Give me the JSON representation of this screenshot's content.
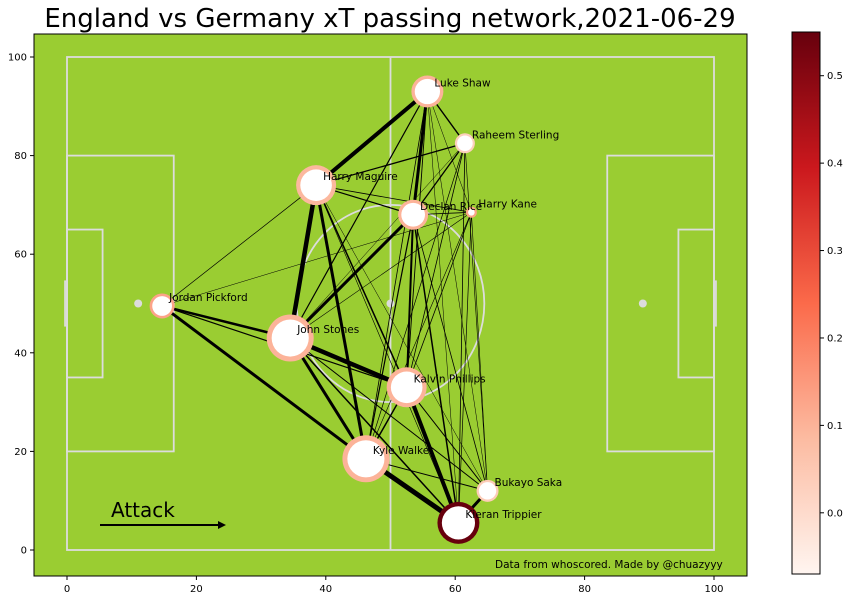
{
  "title": "England vs Germany xT passing network,2021-06-29",
  "attack_label": "Attack",
  "credit": "Data from whoscored. Made by @chuazyyy",
  "colors": {
    "pitch": "#9acd32",
    "pitch_lines": "#dcdcdc",
    "edge": "#000000",
    "node_fill": "#ffffff",
    "cmap": [
      "#fff5f0",
      "#fcbba1",
      "#fb6a4a",
      "#cb181d",
      "#67000d"
    ]
  },
  "chart_data": {
    "type": "network",
    "xlim": [
      -5,
      105
    ],
    "ylim": [
      -5,
      105
    ],
    "xticks": [
      0,
      20,
      40,
      60,
      80,
      100
    ],
    "yticks": [
      0,
      20,
      40,
      60,
      80,
      100
    ],
    "colorbar": {
      "min": -0.07,
      "max": 0.55,
      "ticks": [
        0.0,
        0.1,
        0.2,
        0.3,
        0.4,
        0.5
      ],
      "tick_labels": [
        "0.0",
        "0.1",
        "0.2",
        "0.3",
        "0.4",
        "0.5"
      ]
    },
    "nodes": [
      {
        "id": "shaw",
        "name": "Luke Shaw",
        "x": 55.7,
        "y": 93,
        "size": 3.2,
        "xt": 0.1
      },
      {
        "id": "sterling",
        "name": "Raheem Sterling",
        "x": 61.5,
        "y": 82.5,
        "size": 2.0,
        "xt": 0.03
      },
      {
        "id": "maguire",
        "name": "Harry Maguire",
        "x": 38.5,
        "y": 74,
        "size": 4.0,
        "xt": 0.09
      },
      {
        "id": "rice",
        "name": "Declan Rice",
        "x": 53.5,
        "y": 68,
        "size": 3.0,
        "xt": 0.1
      },
      {
        "id": "kane",
        "name": "Harry Kane",
        "x": 62.5,
        "y": 68.5,
        "size": 1.1,
        "xt": 0.13
      },
      {
        "id": "pickford",
        "name": "Jordan Pickford",
        "x": 14.7,
        "y": 49.5,
        "size": 2.5,
        "xt": 0.13
      },
      {
        "id": "stones",
        "name": "John Stones",
        "x": 34.5,
        "y": 43,
        "size": 4.7,
        "xt": 0.1
      },
      {
        "id": "phillips",
        "name": "Kalvin Phillips",
        "x": 52.5,
        "y": 33,
        "size": 4.0,
        "xt": 0.1
      },
      {
        "id": "walker",
        "name": "Kyle Walker",
        "x": 46.2,
        "y": 18.5,
        "size": 4.7,
        "xt": 0.1
      },
      {
        "id": "saka",
        "name": "Bukayo Saka",
        "x": 65,
        "y": 12,
        "size": 2.2,
        "xt": 0.04
      },
      {
        "id": "trippier",
        "name": "Kieran Trippier",
        "x": 60.5,
        "y": 5.5,
        "size": 4.2,
        "xt": 0.55
      }
    ],
    "edges": [
      {
        "from": "maguire",
        "to": "shaw",
        "width": 4
      },
      {
        "from": "rice",
        "to": "shaw",
        "width": 3
      },
      {
        "from": "shaw",
        "to": "stones",
        "width": 1.2
      },
      {
        "from": "shaw",
        "to": "sterling",
        "width": 1.4
      },
      {
        "from": "shaw",
        "to": "phillips",
        "width": 0.9
      },
      {
        "from": "shaw",
        "to": "walker",
        "width": 0.8
      },
      {
        "from": "shaw",
        "to": "saka",
        "width": 0.5
      },
      {
        "from": "shaw",
        "to": "trippier",
        "width": 0.5
      },
      {
        "from": "shaw",
        "to": "kane",
        "width": 0.5
      },
      {
        "from": "maguire",
        "to": "sterling",
        "width": 1.3
      },
      {
        "from": "rice",
        "to": "sterling",
        "width": 1.3
      },
      {
        "from": "sterling",
        "to": "phillips",
        "width": 0.8
      },
      {
        "from": "sterling",
        "to": "trippier",
        "width": 0.8
      },
      {
        "from": "sterling",
        "to": "saka",
        "width": 0.6
      },
      {
        "from": "sterling",
        "to": "walker",
        "width": 0.7
      },
      {
        "from": "sterling",
        "to": "stones",
        "width": 0.5
      },
      {
        "from": "maguire",
        "to": "rice",
        "width": 1.2
      },
      {
        "from": "maguire",
        "to": "kane",
        "width": 0.8
      },
      {
        "from": "maguire",
        "to": "stones",
        "width": 4.5
      },
      {
        "from": "maguire",
        "to": "walker",
        "width": 3
      },
      {
        "from": "maguire",
        "to": "phillips",
        "width": 1.5
      },
      {
        "from": "maguire",
        "to": "pickford",
        "width": 0.7
      },
      {
        "from": "maguire",
        "to": "trippier",
        "width": 0.6
      },
      {
        "from": "maguire",
        "to": "saka",
        "width": 0.5
      },
      {
        "from": "rice",
        "to": "stones",
        "width": 3
      },
      {
        "from": "rice",
        "to": "kane",
        "width": 0.8
      },
      {
        "from": "rice",
        "to": "phillips",
        "width": 2
      },
      {
        "from": "rice",
        "to": "walker",
        "width": 1.2
      },
      {
        "from": "rice",
        "to": "trippier",
        "width": 1.5
      },
      {
        "from": "rice",
        "to": "saka",
        "width": 0.8
      },
      {
        "from": "kane",
        "to": "stones",
        "width": 0.6
      },
      {
        "from": "kane",
        "to": "phillips",
        "width": 0.8
      },
      {
        "from": "kane",
        "to": "walker",
        "width": 0.6
      },
      {
        "from": "kane",
        "to": "trippier",
        "width": 0.7
      },
      {
        "from": "kane",
        "to": "saka",
        "width": 0.6
      },
      {
        "from": "kane",
        "to": "pickford",
        "width": 0.5
      },
      {
        "from": "pickford",
        "to": "stones",
        "width": 2.5
      },
      {
        "from": "pickford",
        "to": "walker",
        "width": 3
      },
      {
        "from": "pickford",
        "to": "phillips",
        "width": 1.2
      },
      {
        "from": "stones",
        "to": "phillips",
        "width": 4.5
      },
      {
        "from": "stones",
        "to": "walker",
        "width": 3
      },
      {
        "from": "stones",
        "to": "trippier",
        "width": 1.5
      },
      {
        "from": "stones",
        "to": "saka",
        "width": 1
      },
      {
        "from": "phillips",
        "to": "walker",
        "width": 1.5
      },
      {
        "from": "phillips",
        "to": "trippier",
        "width": 4
      },
      {
        "from": "phillips",
        "to": "saka",
        "width": 1
      },
      {
        "from": "walker",
        "to": "trippier",
        "width": 5
      },
      {
        "from": "walker",
        "to": "saka",
        "width": 1
      },
      {
        "from": "saka",
        "to": "trippier",
        "width": 3
      }
    ]
  }
}
